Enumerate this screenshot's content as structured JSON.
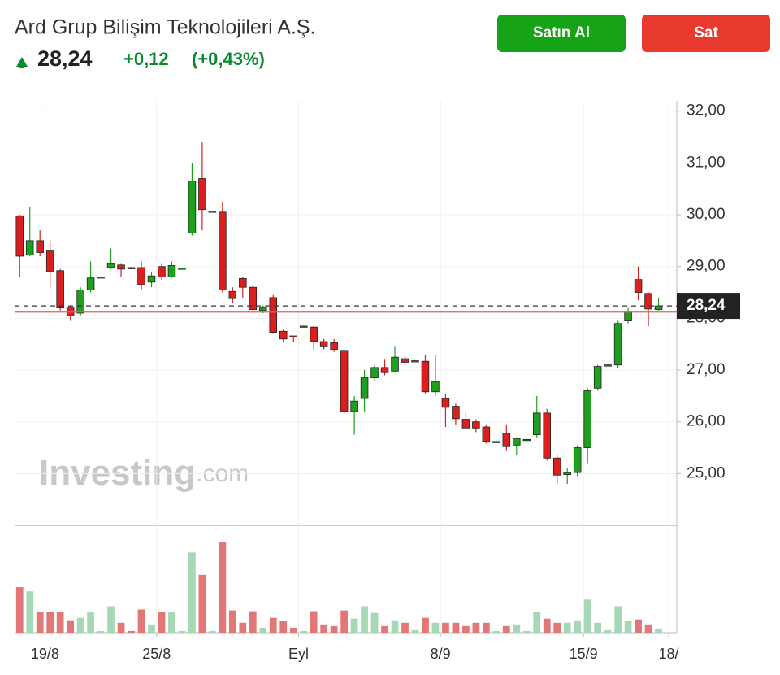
{
  "header": {
    "title": "Ard Grup Bilişim Teknolojileri A.Ş.",
    "price": "28,24",
    "change": "+0,12",
    "change_percent": "(+0,43%)",
    "buy_button": "Satın Al",
    "sell_button": "Sat"
  },
  "watermark": {
    "brand": "Investing",
    "suffix": ".com"
  },
  "chart_data": {
    "type": "candlestick",
    "xlim": [
      -0.5,
      64.8
    ],
    "xticks": [
      {
        "value": 2.5,
        "label": "19/8"
      },
      {
        "value": 13.5,
        "label": "25/8"
      },
      {
        "value": 27.5,
        "label": "Eyl"
      },
      {
        "value": 41.5,
        "label": "8/9"
      },
      {
        "value": 55.6,
        "label": "15/9"
      },
      {
        "value": 64.0,
        "label": "18/"
      }
    ],
    "ylim": [
      24,
      32.2
    ],
    "yticks": [
      {
        "value": 25,
        "label": "25,00"
      },
      {
        "value": 26,
        "label": "26,00"
      },
      {
        "value": 27,
        "label": "27,00"
      },
      {
        "value": 28,
        "label": "28,00"
      },
      {
        "value": 29,
        "label": "29,00"
      },
      {
        "value": 30,
        "label": "30,00"
      },
      {
        "value": 31,
        "label": "31,00"
      },
      {
        "value": 32,
        "label": "32,00"
      }
    ],
    "grid": true,
    "up_color": "#1ea01e",
    "down_color": "#d9201f",
    "volume_up_color": "#a6d8b6",
    "volume_down_color": "#e27777",
    "last_price": {
      "value": 28.24,
      "label": "28,24"
    },
    "previous_close": 28.12,
    "open": [
      29.98,
      29.22,
      29.5,
      29.3,
      28.92,
      28.22,
      28.1,
      28.55,
      28.78,
      28.98,
      29.03,
      28.98,
      28.98,
      28.7,
      29.0,
      28.8,
      28.97,
      29.65,
      30.7,
      30.07,
      30.05,
      28.52,
      28.77,
      28.6,
      28.15,
      28.4,
      27.75,
      27.66,
      27.85,
      27.83,
      27.55,
      27.53,
      27.38,
      26.2,
      26.45,
      26.85,
      27.05,
      26.98,
      27.22,
      27.18,
      27.17,
      26.58,
      26.45,
      26.3,
      26.05,
      26.0,
      25.9,
      25.62,
      25.78,
      25.55,
      25.66,
      25.75,
      26.17,
      25.3,
      24.98,
      25.02,
      25.5,
      26.65,
      27.1,
      27.1,
      27.95,
      28.75,
      28.48,
      28.17
    ],
    "high": [
      30.0,
      30.15,
      29.7,
      29.5,
      28.95,
      28.25,
      28.6,
      29.1,
      28.8,
      29.35,
      29.05,
      28.99,
      29.1,
      28.9,
      29.05,
      29.1,
      28.98,
      31.0,
      31.4,
      30.08,
      30.25,
      28.6,
      28.8,
      28.65,
      28.25,
      28.45,
      27.8,
      27.66,
      27.86,
      27.85,
      27.6,
      27.6,
      27.4,
      26.5,
      27.0,
      27.1,
      27.2,
      27.45,
      27.3,
      27.19,
      27.3,
      27.3,
      26.55,
      26.35,
      26.2,
      26.05,
      25.95,
      25.63,
      25.95,
      25.7,
      25.67,
      26.5,
      26.25,
      25.35,
      25.1,
      25.55,
      26.65,
      27.1,
      27.11,
      27.95,
      28.2,
      29.0,
      28.5,
      28.4
    ],
    "low": [
      28.8,
      29.2,
      29.2,
      28.6,
      28.15,
      27.95,
      28.05,
      28.5,
      28.77,
      28.95,
      28.8,
      28.97,
      28.55,
      28.6,
      28.75,
      28.78,
      28.96,
      29.6,
      29.7,
      30.06,
      28.5,
      28.3,
      28.4,
      28.1,
      28.1,
      27.7,
      27.55,
      27.55,
      27.84,
      27.4,
      27.4,
      27.35,
      26.15,
      25.75,
      26.2,
      26.8,
      26.9,
      26.95,
      27.1,
      27.17,
      26.55,
      26.5,
      25.9,
      25.95,
      25.85,
      25.8,
      25.58,
      25.61,
      25.45,
      25.35,
      25.65,
      25.7,
      25.25,
      24.8,
      24.8,
      24.95,
      25.2,
      26.6,
      27.09,
      27.05,
      27.9,
      28.35,
      27.85,
      28.15
    ],
    "close": [
      29.2,
      29.5,
      29.27,
      28.9,
      28.2,
      28.05,
      28.55,
      28.78,
      28.8,
      29.05,
      28.95,
      28.97,
      28.65,
      28.82,
      28.8,
      29.02,
      28.97,
      30.65,
      30.1,
      30.07,
      28.55,
      28.38,
      28.6,
      28.17,
      28.2,
      27.73,
      27.6,
      27.65,
      27.85,
      27.55,
      27.45,
      27.4,
      26.2,
      26.4,
      26.85,
      27.05,
      26.95,
      27.25,
      27.15,
      27.18,
      26.58,
      26.78,
      26.28,
      26.06,
      25.88,
      25.88,
      25.62,
      25.62,
      25.52,
      25.68,
      25.66,
      26.17,
      25.3,
      24.97,
      25.02,
      25.5,
      26.6,
      27.07,
      27.1,
      27.9,
      28.12,
      28.5,
      28.18,
      28.24
    ],
    "volume_lim": [
      0,
      120
    ],
    "volume": [
      55,
      50,
      25,
      25,
      25,
      15,
      18,
      25,
      2,
      32,
      12,
      2,
      28,
      10,
      25,
      25,
      2,
      97,
      70,
      2,
      110,
      27,
      12,
      26,
      6,
      18,
      14,
      6,
      2,
      26,
      10,
      8,
      27,
      17,
      32,
      24,
      8,
      15,
      12,
      3,
      18,
      12,
      12,
      12,
      8,
      12,
      12,
      2,
      8,
      10,
      2,
      25,
      17,
      12,
      12,
      15,
      40,
      12,
      3,
      32,
      14,
      16,
      10,
      5
    ]
  }
}
